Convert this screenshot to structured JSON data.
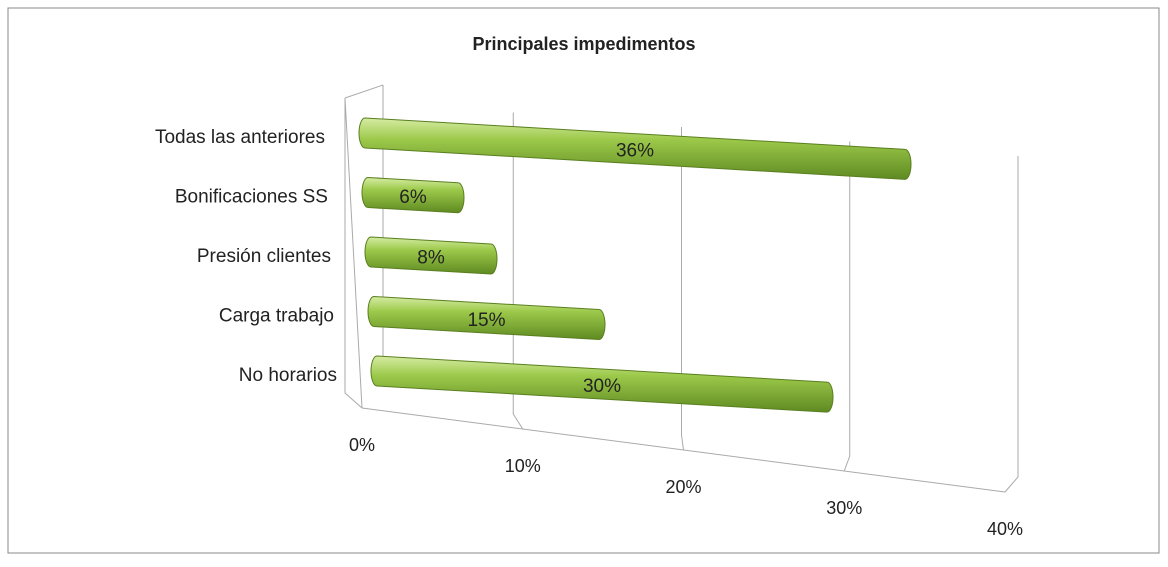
{
  "chart_data": {
    "type": "bar",
    "orientation": "horizontal",
    "title": "Principales impedimentos",
    "categories": [
      "Todas las anteriores",
      "Bonificaciones SS",
      "Presión clientes",
      "Carga trabajo",
      "No horarios"
    ],
    "values": [
      36,
      6,
      8,
      15,
      30
    ],
    "value_labels": [
      "36%",
      "6%",
      "8%",
      "15%",
      "30%"
    ],
    "color": "#8db83e",
    "xlim": [
      0,
      40
    ],
    "xticks": [
      {
        "value": 0,
        "label": "0%"
      },
      {
        "value": 10,
        "label": "10%"
      },
      {
        "value": 20,
        "label": "20%"
      },
      {
        "value": 30,
        "label": "30%"
      },
      {
        "value": 40,
        "label": "40%"
      }
    ],
    "grid": true
  }
}
